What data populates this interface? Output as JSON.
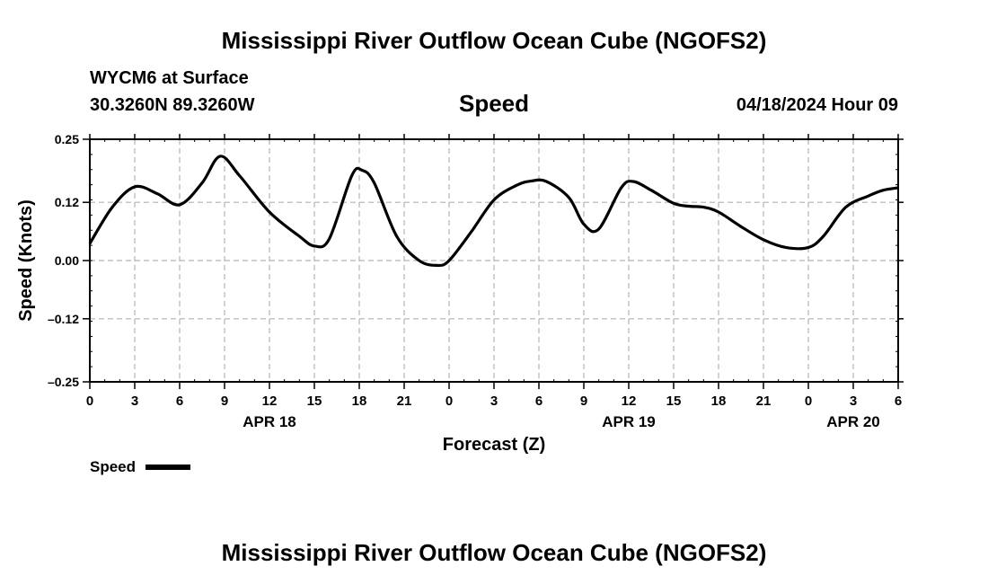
{
  "header": {
    "title": "Mississippi River Outflow Ocean Cube (NGOFS2)",
    "station": "WYCM6 at Surface",
    "coords": "30.3260N  89.3260W",
    "variable": "Speed",
    "datetime": "04/18/2024 Hour 09"
  },
  "footer": {
    "title": "Mississippi River Outflow Ocean Cube (NGOFS2)"
  },
  "chart_data": {
    "type": "line",
    "title": "Speed",
    "xlabel": "Forecast (Z)",
    "ylabel": "Speed (Knots)",
    "ylim": [
      -0.25,
      0.25
    ],
    "xlim": [
      0,
      54
    ],
    "yticks": [
      0.25,
      0.12,
      0.0,
      -0.12,
      -0.25
    ],
    "ytick_labels": [
      "0.25",
      "0.12",
      "0.00",
      "–0.12",
      "–0.25"
    ],
    "xticks": [
      0,
      3,
      6,
      9,
      12,
      15,
      18,
      21,
      24,
      27,
      30,
      33,
      36,
      39,
      42,
      45,
      48,
      51,
      54
    ],
    "xtick_labels": [
      "0",
      "3",
      "6",
      "9",
      "12",
      "15",
      "18",
      "21",
      "0",
      "3",
      "6",
      "9",
      "12",
      "15",
      "18",
      "21",
      "0",
      "3",
      "6"
    ],
    "date_labels": [
      {
        "x": 12,
        "label": "APR 18"
      },
      {
        "x": 36,
        "label": "APR 19"
      },
      {
        "x": 51,
        "label": "APR 20"
      }
    ],
    "grid": true,
    "legend_position": "bottom-left",
    "series": [
      {
        "name": "Speed",
        "color": "#000000",
        "x": [
          0,
          1.5,
          3,
          4.5,
          6,
          7.5,
          8.7,
          10,
          12,
          14,
          15,
          16,
          17.5,
          18.2,
          19,
          20.5,
          22,
          23.2,
          24,
          25.5,
          27,
          28.5,
          29.5,
          30.5,
          32,
          33,
          34,
          35.5,
          36.3,
          37.5,
          39,
          40,
          41,
          42,
          43.5,
          45,
          46.5,
          48,
          49,
          50.5,
          52,
          53,
          54
        ],
        "y": [
          0.035,
          0.11,
          0.152,
          0.138,
          0.115,
          0.16,
          0.215,
          0.175,
          0.1,
          0.05,
          0.03,
          0.045,
          0.175,
          0.186,
          0.16,
          0.05,
          0.0,
          -0.01,
          0.0,
          0.06,
          0.125,
          0.155,
          0.164,
          0.163,
          0.13,
          0.075,
          0.065,
          0.15,
          0.163,
          0.145,
          0.118,
          0.112,
          0.11,
          0.1,
          0.07,
          0.043,
          0.027,
          0.027,
          0.05,
          0.11,
          0.133,
          0.145,
          0.15
        ]
      }
    ]
  }
}
